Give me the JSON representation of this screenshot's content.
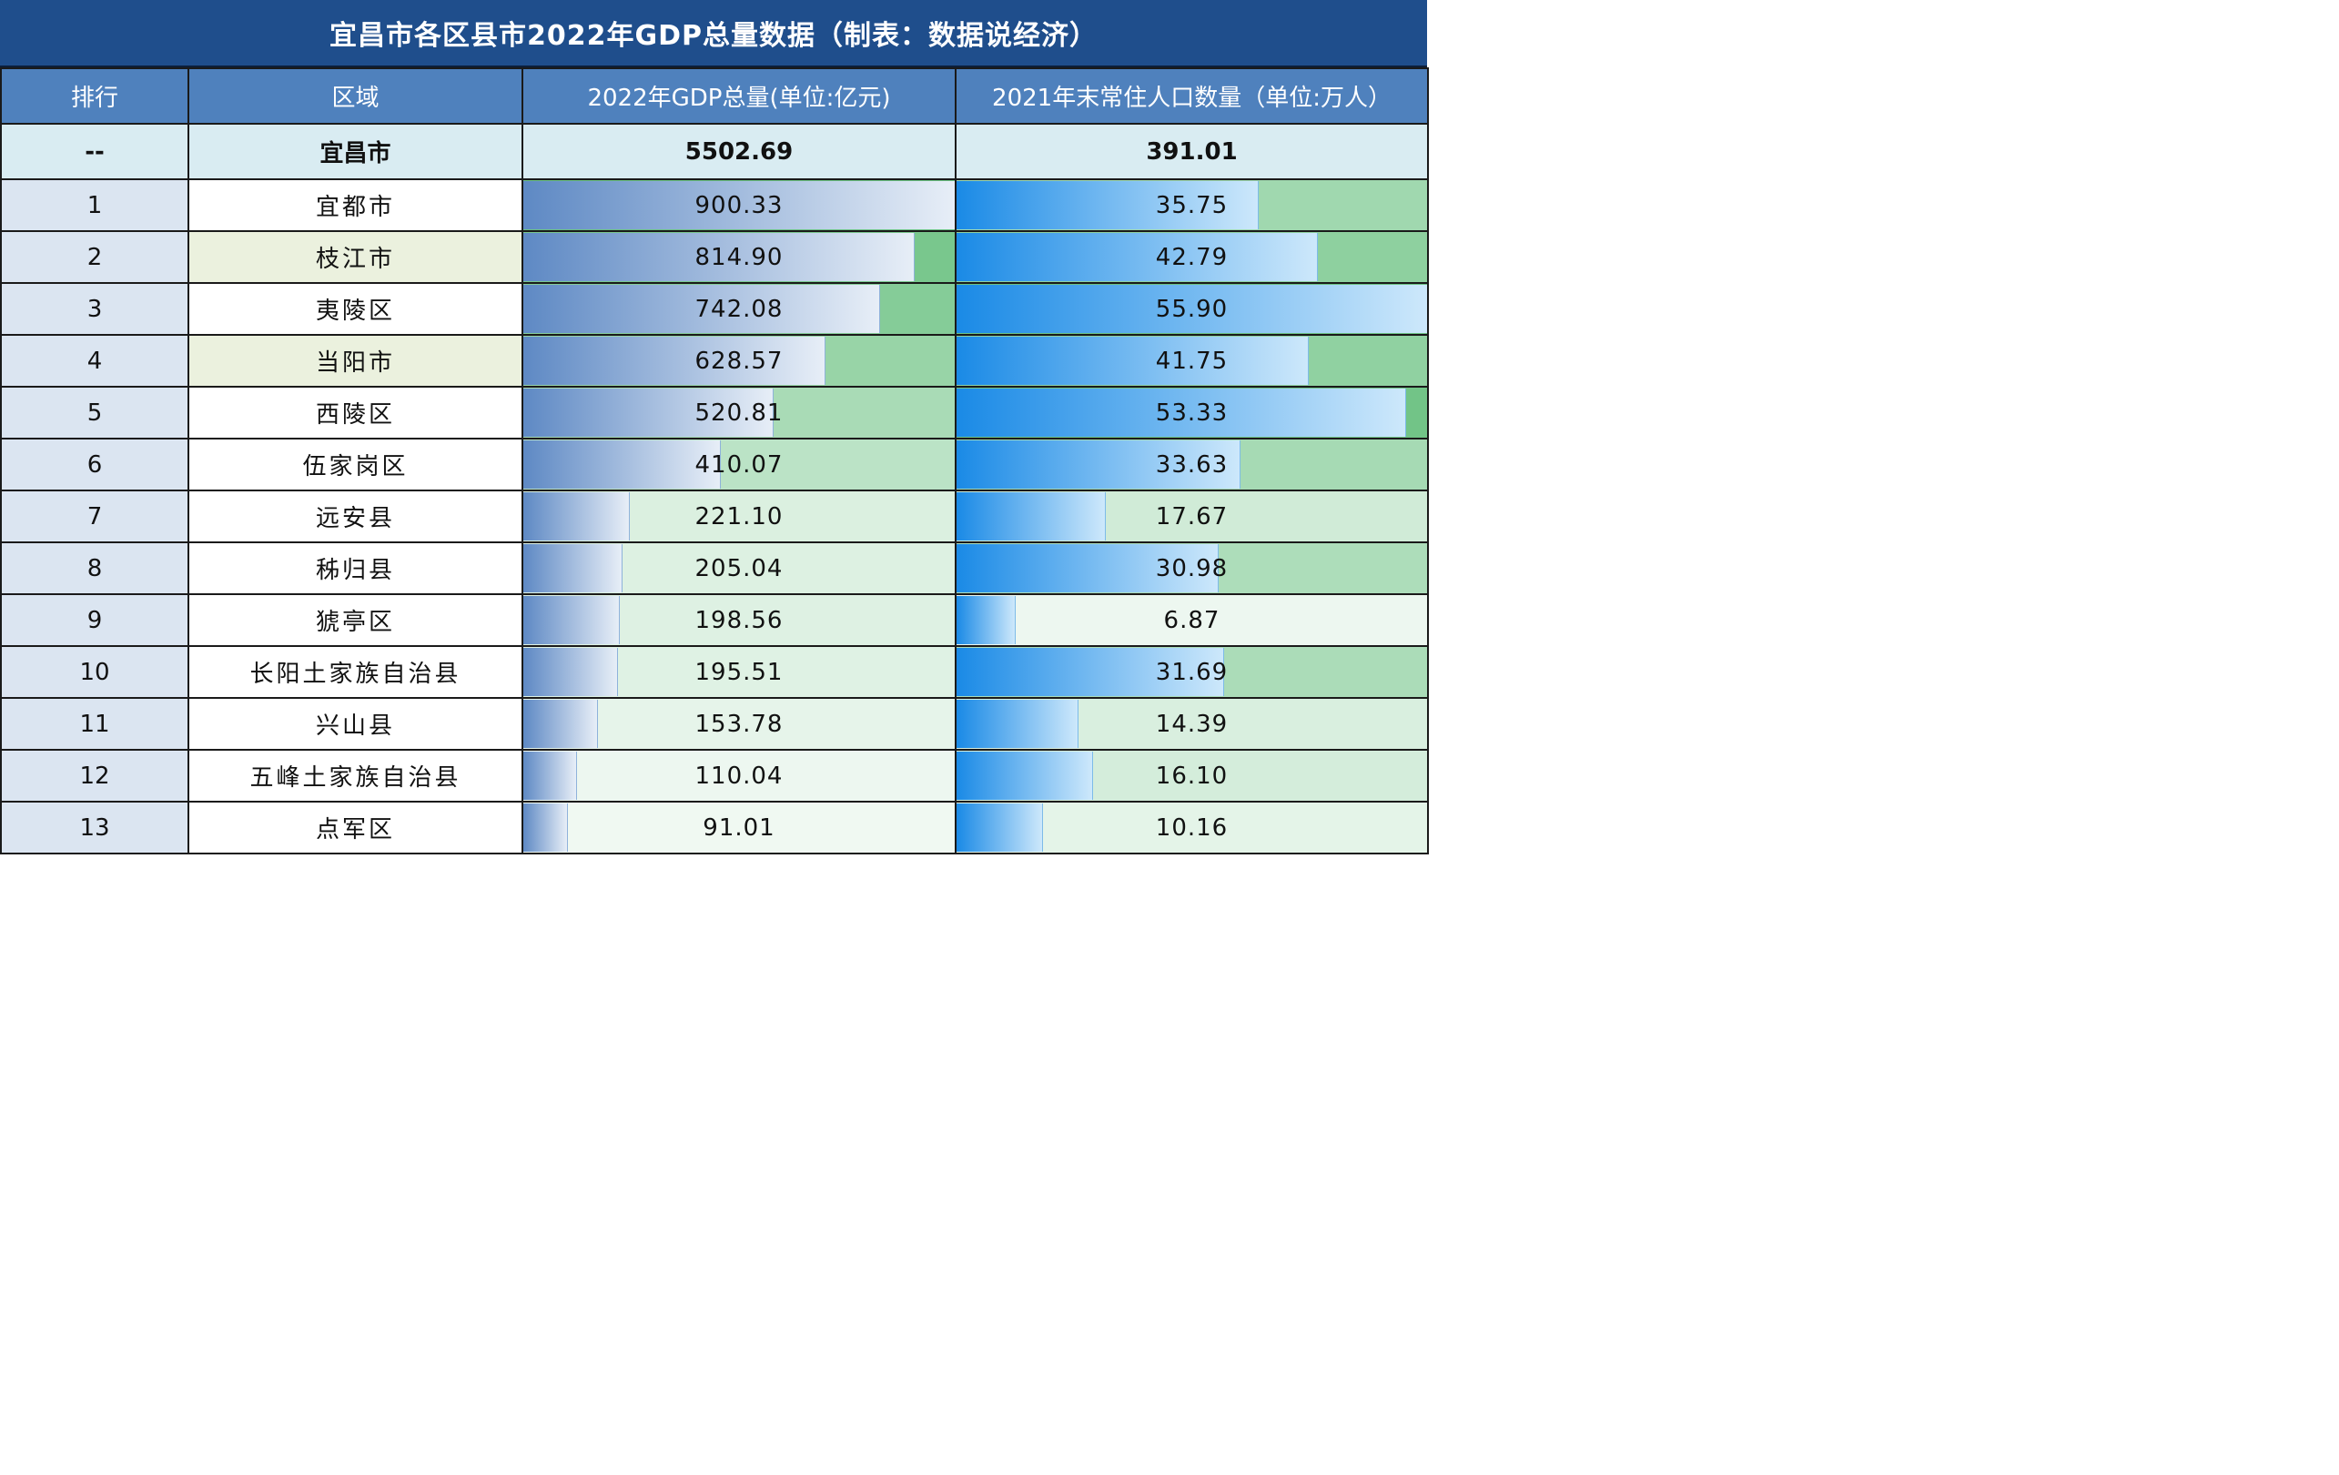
{
  "title": "宜昌市各区县市2022年GDP总量数据（制表：数据说经济）",
  "headers": [
    "排行",
    "区域",
    "2022年GDP总量(单位:亿元)",
    "2021年末常住人口数量（单位:万人）"
  ],
  "total": {
    "rank": "--",
    "region": "宜昌市",
    "gdp": "5502.69",
    "pop": "391.01"
  },
  "gdp_max": 900.33,
  "pop_max": 55.9,
  "rows": [
    {
      "rank": "1",
      "region": "宜都市",
      "gdp": "900.33",
      "pop": "35.75"
    },
    {
      "rank": "2",
      "region": "枝江市",
      "gdp": "814.90",
      "pop": "42.79"
    },
    {
      "rank": "3",
      "region": "夷陵区",
      "gdp": "742.08",
      "pop": "55.90"
    },
    {
      "rank": "4",
      "region": "当阳市",
      "gdp": "628.57",
      "pop": "41.75"
    },
    {
      "rank": "5",
      "region": "西陵区",
      "gdp": "520.81",
      "pop": "53.33"
    },
    {
      "rank": "6",
      "region": "伍家岗区",
      "gdp": "410.07",
      "pop": "33.63"
    },
    {
      "rank": "7",
      "region": "远安县",
      "gdp": "221.10",
      "pop": "17.67"
    },
    {
      "rank": "8",
      "region": "秭归县",
      "gdp": "205.04",
      "pop": "30.98"
    },
    {
      "rank": "9",
      "region": "猇亭区",
      "gdp": "198.56",
      "pop": "6.87"
    },
    {
      "rank": "10",
      "region": "长阳土家族自治县",
      "gdp": "195.51",
      "pop": "31.69"
    },
    {
      "rank": "11",
      "region": "兴山县",
      "gdp": "153.78",
      "pop": "14.39"
    },
    {
      "rank": "12",
      "region": "五峰土家族自治县",
      "gdp": "110.04",
      "pop": "16.10"
    },
    {
      "rank": "13",
      "region": "点军区",
      "gdp": "91.01",
      "pop": "10.16"
    }
  ],
  "colors": {
    "title_bg": "#1f4e8c",
    "header_bg": "#4f81bd",
    "total_bg": "#d9ecf2",
    "rank_bg": "#dbe5f1",
    "region_alt_bg": "#ebf1de",
    "gdp_bar": "#5e89c4",
    "pop_bar": "#1a8ae6",
    "heat_high": "#63be7b",
    "heat_low": "#ffffff"
  }
}
